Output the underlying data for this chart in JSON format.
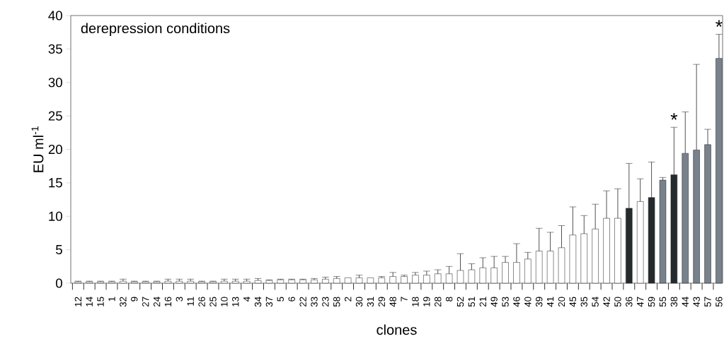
{
  "chart_data": {
    "type": "bar",
    "xlabel": "clones",
    "ylabel": "EU ml$^{-1}$",
    "categories": [
      "12",
      "14",
      "15",
      "1",
      "32",
      "9",
      "27",
      "24",
      "16",
      "3",
      "11",
      "26",
      "25",
      "10",
      "13",
      "4",
      "34",
      "37",
      "5",
      "6",
      "22",
      "33",
      "23",
      "58",
      "2",
      "30",
      "31",
      "29",
      "48",
      "7",
      "18",
      "19",
      "28",
      "8",
      "52",
      "51",
      "21",
      "49",
      "53",
      "46",
      "40",
      "39",
      "41",
      "20",
      "45",
      "35",
      "54",
      "42",
      "50",
      "36",
      "47",
      "59",
      "55",
      "38",
      "44",
      "43",
      "57",
      "56"
    ],
    "values": [
      0.2,
      0.2,
      0.2,
      0.2,
      0.3,
      0.2,
      0.2,
      0.2,
      0.3,
      0.3,
      0.3,
      0.2,
      0.2,
      0.3,
      0.3,
      0.3,
      0.4,
      0.4,
      0.5,
      0.5,
      0.5,
      0.5,
      0.6,
      0.7,
      0.8,
      0.8,
      0.8,
      0.8,
      1.0,
      1.0,
      1.2,
      1.2,
      1.4,
      1.4,
      1.9,
      2.0,
      2.3,
      2.3,
      3.1,
      3.1,
      3.6,
      4.8,
      4.8,
      5.3,
      7.2,
      7.4,
      8.1,
      9.7,
      9.7,
      11.2,
      12.2,
      12.8,
      15.4,
      16.2,
      19.4,
      19.9,
      20.7,
      33.6
    ],
    "errors": [
      0.1,
      0.1,
      0.1,
      0.1,
      0.3,
      0.1,
      0.1,
      0.1,
      0.3,
      0.3,
      0.3,
      0.1,
      0.1,
      0.3,
      0.3,
      0.3,
      0.3,
      0.1,
      0.1,
      0.1,
      0.1,
      0.2,
      0.3,
      0.3,
      null,
      0.4,
      null,
      0.2,
      0.6,
      0.2,
      0.4,
      0.6,
      0.6,
      1.1,
      2.5,
      0.9,
      1.5,
      1.7,
      0.9,
      2.8,
      1.0,
      3.4,
      2.8,
      3.3,
      4.2,
      2.7,
      3.7,
      4.1,
      4.4,
      6.7,
      3.4,
      5.3,
      0.4,
      7.1,
      6.2,
      12.8,
      2.3,
      3.6
    ],
    "colors": [
      "#ffffff",
      "#ffffff",
      "#ffffff",
      "#ffffff",
      "#ffffff",
      "#ffffff",
      "#ffffff",
      "#ffffff",
      "#ffffff",
      "#ffffff",
      "#ffffff",
      "#ffffff",
      "#ffffff",
      "#ffffff",
      "#ffffff",
      "#ffffff",
      "#ffffff",
      "#ffffff",
      "#ffffff",
      "#ffffff",
      "#ffffff",
      "#ffffff",
      "#ffffff",
      "#ffffff",
      "#ffffff",
      "#ffffff",
      "#ffffff",
      "#ffffff",
      "#ffffff",
      "#ffffff",
      "#ffffff",
      "#ffffff",
      "#ffffff",
      "#ffffff",
      "#ffffff",
      "#ffffff",
      "#ffffff",
      "#ffffff",
      "#ffffff",
      "#ffffff",
      "#ffffff",
      "#ffffff",
      "#ffffff",
      "#ffffff",
      "#ffffff",
      "#ffffff",
      "#ffffff",
      "#ffffff",
      "#ffffff",
      "#252a2c",
      "#ffffff",
      "#252a2c",
      "#78828c",
      "#252a2c",
      "#78828c",
      "#78828c",
      "#78828c",
      "#78828c"
    ],
    "ylim": [
      0,
      40
    ],
    "yticks": [
      0,
      5,
      10,
      15,
      20,
      25,
      30,
      35,
      40
    ],
    "grid": false,
    "annotations": [
      "derepression conditions",
      {
        "text": "*",
        "x": "38",
        "y": 23.3
      },
      {
        "text": "*",
        "x": "56",
        "y": 37.2
      }
    ]
  }
}
